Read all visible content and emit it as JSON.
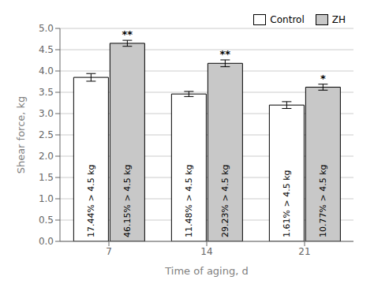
{
  "chart_data": {
    "type": "bar",
    "categories": [
      "7",
      "14",
      "21"
    ],
    "xlabel": "Time of aging, d",
    "ylabel": "Shear force, kg",
    "ylim": [
      0.0,
      5.0
    ],
    "yticks": [
      {
        "value": 0.0,
        "label": "0.0"
      },
      0.5,
      {
        "value": 1.0,
        "label": "1.0"
      },
      1.5,
      {
        "value": 2.0,
        "label": "2.0"
      },
      2.5,
      {
        "value": 3.0,
        "label": "3.0"
      },
      3.5,
      {
        "value": 4.0,
        "label": "4.0"
      },
      4.5,
      {
        "value": 5.0,
        "label": "5.0"
      }
    ],
    "grid": true,
    "legend": "upper right",
    "series": [
      {
        "name": "Control",
        "color": "#ffffff",
        "values": [
          3.85,
          3.46,
          3.2
        ],
        "errors": [
          0.09,
          0.06,
          0.08
        ],
        "bar_labels": [
          "17.44% > 4.5 kg",
          "11.48% > 4.5 kg",
          "1.61% > 4.5 kg"
        ]
      },
      {
        "name": "ZH",
        "color": "#c8c8c8",
        "values": [
          4.65,
          4.18,
          3.62
        ],
        "errors": [
          0.07,
          0.08,
          0.07
        ],
        "bar_labels": [
          "46.15% > 4.5 kg",
          "29.23% > 4.5 kg",
          "10.77% > 4.5 kg"
        ],
        "sig_labels": [
          "**",
          "**",
          "*"
        ]
      }
    ]
  }
}
